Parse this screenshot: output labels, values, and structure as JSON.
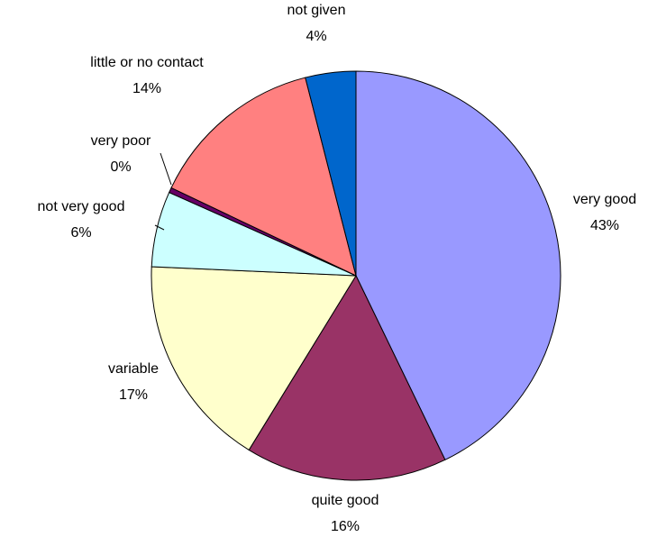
{
  "chart_data": {
    "type": "pie",
    "categories": [
      "very good",
      "quite good",
      "variable",
      "not very good",
      "very poor",
      "little or no contact",
      "not given"
    ],
    "values": [
      43,
      16,
      17,
      6,
      0.4,
      14,
      4
    ],
    "value_labels": [
      "43%",
      "16%",
      "17%",
      "6%",
      "0%",
      "14%",
      "4%"
    ],
    "colors": [
      "#9999FF",
      "#993366",
      "#FFFFCC",
      "#CCFFFF",
      "#660066",
      "#FF8080",
      "#0066CC"
    ]
  }
}
